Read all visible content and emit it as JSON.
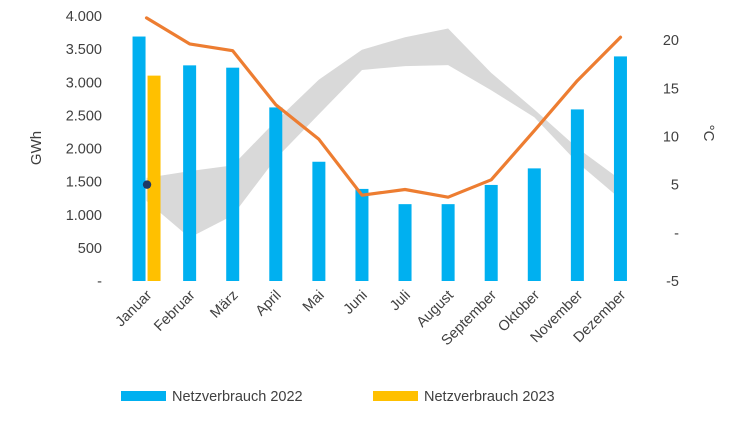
{
  "chart_data": {
    "type": "bar",
    "categories": [
      "Januar",
      "Februar",
      "März",
      "April",
      "Mai",
      "Juni",
      "Juli",
      "August",
      "September",
      "Oktober",
      "November",
      "Dezember"
    ],
    "ylabel": "GWh",
    "y2label": "°C",
    "ylim": [
      0,
      4000
    ],
    "y2lim": [
      -5,
      22.5
    ],
    "yticks": [
      "-",
      "500",
      "1.000",
      "1.500",
      "2.000",
      "2.500",
      "3.000",
      "3.500",
      "4.000"
    ],
    "y2ticks": [
      "-5",
      "-",
      "5",
      "10",
      "15",
      "20"
    ],
    "series": [
      {
        "name": "Netzverbrauch 2022",
        "type": "bar",
        "axis": "left",
        "color": "#00B0F0",
        "values": [
          3690,
          3255,
          3220,
          2620,
          1800,
          1390,
          1160,
          1160,
          1450,
          1700,
          2590,
          3390
        ]
      },
      {
        "name": "Netzverbrauch 2023",
        "type": "bar",
        "axis": "left",
        "color": "#FFC000",
        "values": [
          3100,
          null,
          null,
          null,
          null,
          null,
          null,
          null,
          null,
          null,
          null,
          null
        ]
      },
      {
        "type": "line",
        "axis": "right",
        "color": "#ED7D31",
        "values": [
          22.3,
          19.6,
          18.9,
          13.3,
          9.7,
          3.9,
          4.5,
          3.7,
          5.5,
          10.6,
          15.8,
          20.3
        ]
      },
      {
        "type": "band",
        "axis": "right",
        "color": "#D9D9D9",
        "low": [
          3.3,
          -0.5,
          1.8,
          7.7,
          12.3,
          16.9,
          17.3,
          17.4,
          14.8,
          12.0,
          7.3,
          3.5
        ],
        "high": [
          5.7,
          6.4,
          7.0,
          11.6,
          15.9,
          19.0,
          20.3,
          21.2,
          16.6,
          12.8,
          8.8,
          5.5
        ]
      },
      {
        "type": "point",
        "axis": "right",
        "color": "#1F3864",
        "category": "Januar",
        "value": 5.0
      }
    ],
    "legend": {
      "position": "bottom",
      "items": [
        "Netzverbrauch 2022",
        "Netzverbrauch 2023"
      ]
    },
    "grid": false
  }
}
